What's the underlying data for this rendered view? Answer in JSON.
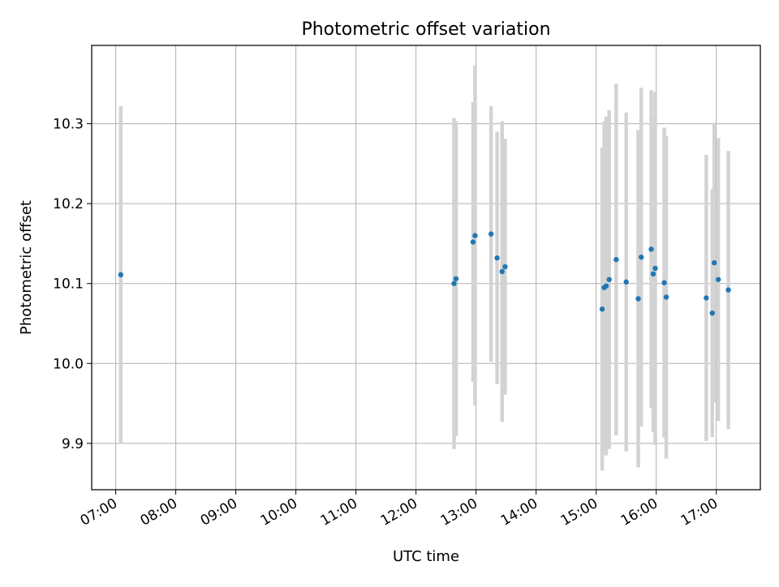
{
  "chart_data": {
    "type": "scatter",
    "title": "Photometric offset variation",
    "xlabel": "UTC time",
    "ylabel": "Photometric offset",
    "x_axis_kind": "time",
    "xlim": [
      "06:36",
      "17:44"
    ],
    "ylim": [
      9.842,
      10.398
    ],
    "x_ticks": [
      "07:00",
      "08:00",
      "09:00",
      "10:00",
      "11:00",
      "12:00",
      "13:00",
      "14:00",
      "15:00",
      "16:00",
      "17:00"
    ],
    "y_ticks": [
      9.9,
      10.0,
      10.1,
      10.2,
      10.3
    ],
    "y_tick_labels": [
      "9.9",
      "10.0",
      "10.1",
      "10.2",
      "10.3"
    ],
    "grid": true,
    "point_color": "#1f77b4",
    "errorbar_color": "#d3d3d3",
    "series": [
      {
        "points": [
          {
            "x": "07:05",
            "y": 10.111,
            "err": 0.211
          },
          {
            "x": "12:38",
            "y": 10.1,
            "err": 0.207
          },
          {
            "x": "12:40",
            "y": 10.106,
            "err": 0.197
          },
          {
            "x": "12:57",
            "y": 10.152,
            "err": 0.175
          },
          {
            "x": "12:59",
            "y": 10.16,
            "err": 0.213
          },
          {
            "x": "13:15",
            "y": 10.162,
            "err": 0.16
          },
          {
            "x": "13:21",
            "y": 10.132,
            "err": 0.158
          },
          {
            "x": "13:26",
            "y": 10.115,
            "err": 0.188
          },
          {
            "x": "13:29",
            "y": 10.121,
            "err": 0.16
          },
          {
            "x": "15:06",
            "y": 10.068,
            "err": 0.202
          },
          {
            "x": "15:08",
            "y": 10.095,
            "err": 0.208
          },
          {
            "x": "15:10",
            "y": 10.097,
            "err": 0.212
          },
          {
            "x": "15:13",
            "y": 10.105,
            "err": 0.212
          },
          {
            "x": "15:20",
            "y": 10.13,
            "err": 0.22
          },
          {
            "x": "15:30",
            "y": 10.102,
            "err": 0.212
          },
          {
            "x": "15:42",
            "y": 10.081,
            "err": 0.211
          },
          {
            "x": "15:45",
            "y": 10.133,
            "err": 0.212
          },
          {
            "x": "15:55",
            "y": 10.143,
            "err": 0.199
          },
          {
            "x": "15:57",
            "y": 10.112,
            "err": 0.198
          },
          {
            "x": "15:59",
            "y": 10.119,
            "err": 0.221
          },
          {
            "x": "16:08",
            "y": 10.101,
            "err": 0.194
          },
          {
            "x": "16:10",
            "y": 10.083,
            "err": 0.202
          },
          {
            "x": "16:50",
            "y": 10.082,
            "err": 0.179
          },
          {
            "x": "16:56",
            "y": 10.063,
            "err": 0.155
          },
          {
            "x": "16:58",
            "y": 10.126,
            "err": 0.175
          },
          {
            "x": "17:02",
            "y": 10.105,
            "err": 0.177
          },
          {
            "x": "17:12",
            "y": 10.092,
            "err": 0.174
          }
        ]
      }
    ]
  }
}
